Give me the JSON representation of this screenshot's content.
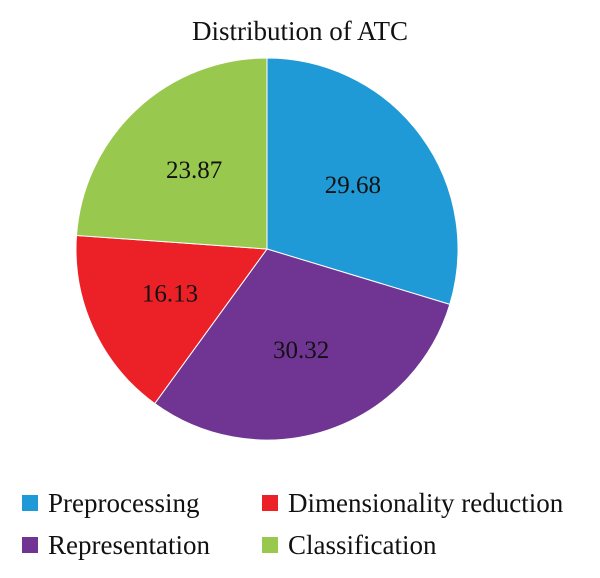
{
  "chart_data": {
    "type": "pie",
    "title": "Distribution of ATC",
    "categories": [
      "Preprocessing",
      "Representation",
      "Dimensionality reduction",
      "Classification"
    ],
    "values": [
      29.68,
      30.32,
      16.13,
      23.87
    ],
    "value_labels": [
      "29.68",
      "30.32",
      "16.13",
      "23.87"
    ],
    "colors": [
      "#1f9ad6",
      "#703593",
      "#ec2128",
      "#99c84f"
    ],
    "legend": {
      "placement": "bottom",
      "items": [
        {
          "label": "Preprocessing",
          "color": "#1f9ad6"
        },
        {
          "label": "Dimensionality reduction",
          "color": "#ec2128"
        },
        {
          "label": "Representation",
          "color": "#703593"
        },
        {
          "label": "Classification",
          "color": "#99c84f"
        }
      ]
    }
  }
}
